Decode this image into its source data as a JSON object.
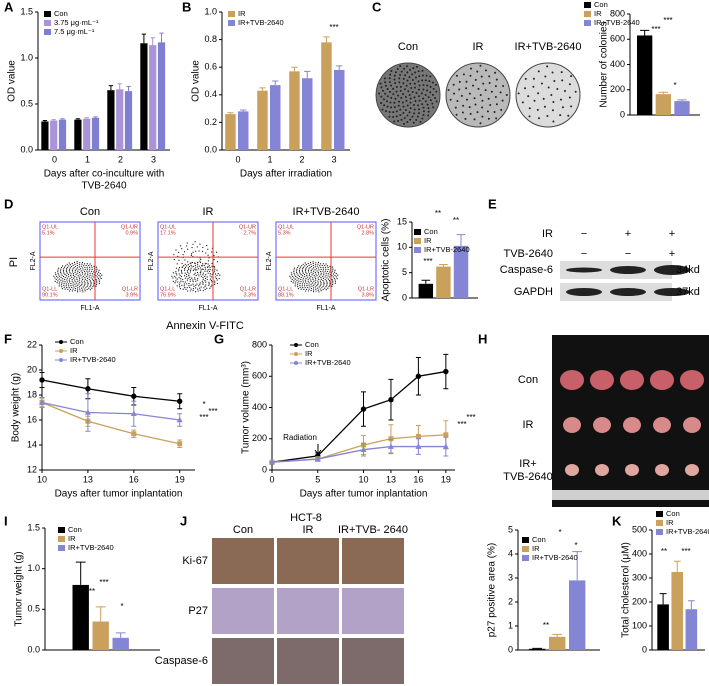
{
  "chart_data": [
    {
      "label": "A",
      "type": "bar",
      "ylabel": "OD value",
      "xlabel": [
        "Days after co-inculture  with",
        "TVB-2640"
      ],
      "categories": [
        "0",
        "1",
        "2",
        "3"
      ],
      "ylim": [
        0,
        1.5
      ],
      "yticks": [
        {
          "value": 0,
          "label": "0.0"
        },
        0.5,
        {
          "value": 1,
          "label": "1.0"
        },
        1.5
      ],
      "series": [
        {
          "name": "Con",
          "color": "#000000",
          "values": [
            0.31,
            0.33,
            0.65,
            1.16
          ],
          "errors": [
            0.01,
            0.01,
            0.05,
            0.1
          ]
        },
        {
          "name": "3.75 μg·mL⁻¹",
          "color": "#a994d8",
          "values": [
            0.32,
            0.34,
            0.66,
            1.14
          ],
          "errors": [
            0.01,
            0.01,
            0.06,
            0.08
          ]
        },
        {
          "name": "7.5 μg·mL⁻¹",
          "color": "#7f7fd1",
          "values": [
            0.33,
            0.35,
            0.64,
            1.17
          ],
          "errors": [
            0.01,
            0.01,
            0.05,
            0.1
          ]
        }
      ],
      "annotations": []
    },
    {
      "label": "B",
      "type": "bar",
      "ylabel": "OD value",
      "xlabel": "Days after irradiation",
      "categories": [
        "0",
        "1",
        "2",
        "3"
      ],
      "ylim": [
        0,
        1
      ],
      "yticks": [
        {
          "value": 0,
          "label": "0.0"
        },
        0.2,
        0.4,
        0.6,
        0.8,
        {
          "value": 1,
          "label": "1.0"
        }
      ],
      "series": [
        {
          "name": "IR",
          "color": "#c9a15c",
          "values": [
            0.26,
            0.43,
            0.57,
            0.78
          ],
          "errors": [
            0.01,
            0.02,
            0.03,
            0.04
          ]
        },
        {
          "name": "IR+TVB-2640",
          "color": "#8585d6",
          "values": [
            0.28,
            0.47,
            0.52,
            0.58
          ],
          "errors": [
            0.01,
            0.03,
            0.05,
            0.03
          ]
        }
      ],
      "annotations": [
        "***"
      ]
    },
    {
      "type": "bar",
      "ylabel": "Number of colonies",
      "categories": [
        null
      ],
      "ylim": [
        0,
        800
      ],
      "yticks": [
        0,
        200,
        400,
        600,
        800
      ],
      "series": [
        {
          "name": "Con",
          "color": "#000000",
          "values": [
            630
          ],
          "errors": [
            40
          ]
        },
        {
          "name": "IR",
          "color": "#c9a15c",
          "values": [
            165
          ],
          "errors": [
            15
          ]
        },
        {
          "name": "IR+TVB-2640",
          "color": "#8585d6",
          "values": [
            110
          ],
          "errors": [
            10
          ]
        }
      ],
      "annotations": [
        "***",
        "***",
        "*"
      ]
    },
    {
      "type": "bar",
      "ylabel": "Apoptotic cells (%)",
      "categories": [
        null
      ],
      "ylim": [
        0,
        15
      ],
      "yticks": [
        0,
        5,
        10,
        15
      ],
      "series": [
        {
          "name": "Con",
          "color": "#000000",
          "values": [
            2.8
          ],
          "errors": [
            0.7
          ]
        },
        {
          "name": "IR",
          "color": "#c9a15c",
          "values": [
            6.2
          ],
          "errors": [
            0.4
          ]
        },
        {
          "name": "IR+TVB-2640",
          "color": "#8585d6",
          "values": [
            10.3
          ],
          "errors": [
            2.2
          ]
        }
      ],
      "annotations": [
        "**",
        "**",
        "***"
      ]
    },
    {
      "label": "F",
      "type": "line",
      "ylabel": "Body weight (g)",
      "xlabel": "Days after tumor inplantation",
      "x": [
        10,
        13,
        16,
        19
      ],
      "xlim": [
        10,
        20
      ],
      "xticks": [
        10,
        13,
        16,
        19
      ],
      "ylim": [
        12,
        22
      ],
      "yticks": [
        12,
        14,
        16,
        18,
        20,
        22
      ],
      "series": [
        {
          "name": "Con",
          "color": "#000000",
          "marker": "circle",
          "values": [
            19.2,
            18.5,
            17.9,
            17.5
          ],
          "errors": [
            0.6,
            0.8,
            0.7,
            0.6
          ]
        },
        {
          "name": "IR",
          "color": "#c9a15c",
          "marker": "square",
          "values": [
            17.4,
            15.9,
            14.9,
            14.1
          ],
          "errors": [
            0.3,
            0.4,
            0.3,
            0.3
          ]
        },
        {
          "name": "IR+TVB-2640",
          "color": "#8585d6",
          "marker": "triangle",
          "values": [
            17.4,
            16.6,
            16.5,
            16.0
          ],
          "errors": [
            0.4,
            1.5,
            1.0,
            0.5
          ]
        }
      ],
      "annotations": [
        "*",
        "***",
        "***"
      ]
    },
    {
      "label": "G",
      "type": "line",
      "ylabel": "Tumor volume (mm³)",
      "xlabel": "Days after tumor inplantation",
      "x": [
        0,
        5,
        10,
        13,
        16,
        19
      ],
      "xlim": [
        0,
        20
      ],
      "xticks": [
        0,
        5,
        10,
        13,
        16,
        19
      ],
      "ylim": [
        0,
        800
      ],
      "yticks": [
        0,
        200,
        400,
        600,
        800
      ],
      "series": [
        {
          "name": "Con",
          "color": "#000000",
          "marker": "circle",
          "values": [
            50,
            90,
            390,
            450,
            600,
            630
          ],
          "errors": [
            5,
            20,
            110,
            130,
            120,
            110
          ]
        },
        {
          "name": "IR",
          "color": "#c9a15c",
          "marker": "square",
          "values": [
            50,
            70,
            160,
            200,
            215,
            225
          ],
          "errors": [
            5,
            15,
            60,
            90,
            70,
            90
          ]
        },
        {
          "name": "IR+TVB-2640",
          "color": "#8585d6",
          "marker": "triangle",
          "values": [
            50,
            70,
            130,
            150,
            150,
            150
          ],
          "errors": [
            5,
            10,
            40,
            45,
            50,
            60
          ]
        }
      ],
      "annotations": [
        "Radiation",
        "***",
        "***"
      ]
    },
    {
      "label": "I",
      "type": "bar",
      "ylabel": "Tumor weight (g)",
      "categories": [
        null
      ],
      "ylim": [
        0,
        1.5
      ],
      "yticks": [
        {
          "value": 0,
          "label": "0.0"
        },
        0.5,
        {
          "value": 1,
          "label": "1.0"
        },
        1.5
      ],
      "series": [
        {
          "name": "Con",
          "color": "#000000",
          "values": [
            0.8
          ],
          "errors": [
            0.28
          ]
        },
        {
          "name": "IR",
          "color": "#c9a15c",
          "values": [
            0.35
          ],
          "errors": [
            0.18
          ]
        },
        {
          "name": "IR+TVB-2640",
          "color": "#8585d6",
          "values": [
            0.15
          ],
          "errors": [
            0.06
          ]
        }
      ],
      "annotations": [
        "**",
        "***",
        "*"
      ]
    },
    {
      "type": "bar",
      "ylabel": "p27 positive area (%)",
      "categories": [
        null
      ],
      "ylim": [
        0,
        5
      ],
      "yticks": [
        0,
        1,
        2,
        3,
        4,
        5
      ],
      "series": [
        {
          "name": "Con",
          "color": "#000000",
          "values": [
            0.05
          ],
          "errors": [
            0.02
          ]
        },
        {
          "name": "IR",
          "color": "#c9a15c",
          "values": [
            0.55
          ],
          "errors": [
            0.1
          ]
        },
        {
          "name": "IR+TVB-2640",
          "color": "#8585d6",
          "values": [
            2.9
          ],
          "errors": [
            1.2
          ]
        }
      ],
      "annotations": [
        "**",
        "*",
        "*"
      ]
    },
    {
      "label": "K",
      "type": "bar",
      "ylabel": "Total cholesterol (μM)",
      "categories": [
        null
      ],
      "ylim": [
        0,
        500
      ],
      "yticks": [
        0,
        100,
        200,
        300,
        400,
        500
      ],
      "series": [
        {
          "name": "Con",
          "color": "#000000",
          "values": [
            190
          ],
          "errors": [
            45
          ]
        },
        {
          "name": "IR",
          "color": "#c9a15c",
          "values": [
            325
          ],
          "errors": [
            45
          ]
        },
        {
          "name": "IR+TVB-2640",
          "color": "#8585d6",
          "values": [
            170
          ],
          "errors": [
            35
          ]
        }
      ],
      "annotations": [
        "**",
        "***"
      ]
    }
  ],
  "panels": {
    "C": {
      "label": "C",
      "plates": [
        "Con",
        "IR",
        "IR+TVB-2640"
      ]
    },
    "D": {
      "label": "D",
      "groups": [
        "Con",
        "IR",
        "IR+TVB-2640"
      ],
      "ylabel": "PI",
      "xlabel": "Annexin V-FITC",
      "plot_ylabel": "FL2-A",
      "plot_xlabel": "FL1-A",
      "quadrants": [
        [
          [
            "Q1-UL",
            "5.1%"
          ],
          [
            "Q1-UR",
            "0.9%"
          ],
          [
            "Q1-LL",
            "90.1%"
          ],
          [
            "Q1-LR",
            "3.9%"
          ]
        ],
        [
          [
            "Q1-UL",
            "17.1%"
          ],
          [
            "Q1-UR",
            "2.7%"
          ],
          [
            "Q1-LL",
            "76.9%"
          ],
          [
            "Q1-LR",
            "3.3%"
          ]
        ],
        [
          [
            "Q1-UL",
            "5.3%"
          ],
          [
            "Q1-UR",
            "2.8%"
          ],
          [
            "Q1-LL",
            "88.1%"
          ],
          [
            "Q1-LR",
            "3.8%"
          ]
        ]
      ]
    },
    "E": {
      "label": "E",
      "rows": [
        {
          "name": "IR",
          "marks": [
            "−",
            "+",
            "+"
          ]
        },
        {
          "name": "TVB-2640",
          "marks": [
            "−",
            "−",
            "+"
          ]
        }
      ],
      "bands": [
        {
          "name": "Caspase-6",
          "size": "34kd"
        },
        {
          "name": "GAPDH",
          "size": "37kd"
        }
      ]
    },
    "H": {
      "label": "H",
      "rows": [
        [
          "Con"
        ],
        [
          "IR"
        ],
        [
          "IR+",
          "TVB-2640"
        ]
      ]
    },
    "J": {
      "label": "J",
      "title": "HCT-8",
      "columns": [
        "Con",
        "IR",
        "IR+TVB- 2640"
      ],
      "rows": [
        "Ki-67",
        "P27",
        "Caspase-6"
      ]
    }
  }
}
